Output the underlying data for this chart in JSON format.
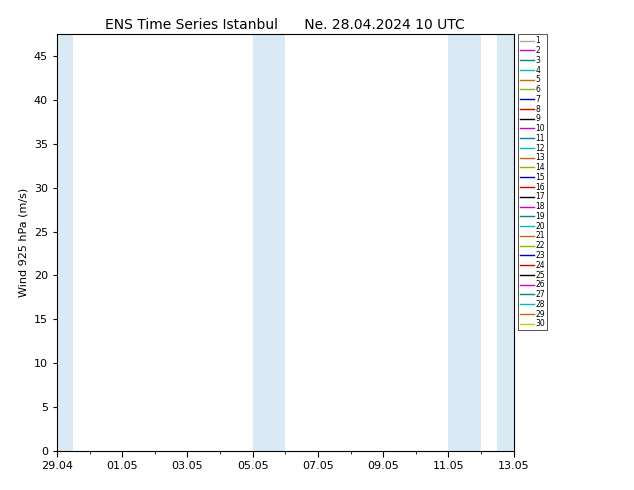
{
  "title": "ENS Time Series Istanbul",
  "subtitle": "Ne. 28.04.2024 10 UTC",
  "ylabel": "Wind 925 hPa (m/s)",
  "ylim": [
    0,
    47.5
  ],
  "yticks": [
    0,
    5,
    10,
    15,
    20,
    25,
    30,
    35,
    40,
    45
  ],
  "total_days": 14,
  "xtick_labels": [
    "29.04",
    "01.05",
    "03.05",
    "05.05",
    "07.05",
    "09.05",
    "11.05",
    "13.05"
  ],
  "xtick_days": [
    0,
    2,
    4,
    6,
    8,
    10,
    12,
    14
  ],
  "shaded_bands": [
    [
      0,
      0.5
    ],
    [
      6,
      7
    ],
    [
      12,
      13
    ],
    [
      13.5,
      14
    ]
  ],
  "shade_color": "#daeaf5",
  "background_color": "#ffffff",
  "member_colors": [
    "#aaaaaa",
    "#cc00cc",
    "#008888",
    "#00bbbb",
    "#cc6600",
    "#88bb00",
    "#0000bb",
    "#cc0000",
    "#000000",
    "#cc00cc",
    "#008888",
    "#00bbbb",
    "#cc6600",
    "#88bb00",
    "#0000bb",
    "#cc0000",
    "#000000",
    "#cc00cc",
    "#008888",
    "#00bbbb",
    "#cc6600",
    "#88bb00",
    "#0000bb",
    "#cc0000",
    "#000000",
    "#cc00cc",
    "#008888",
    "#00bbbb",
    "#cc6600",
    "#cccc00"
  ],
  "n_members": 30,
  "line_value": 0.0,
  "title_fontsize": 10,
  "axis_fontsize": 8,
  "tick_fontsize": 8,
  "legend_fontsize": 5.5
}
